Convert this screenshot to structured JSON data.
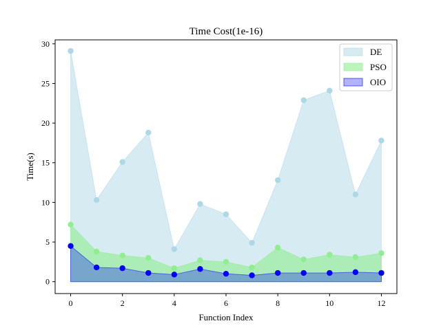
{
  "chart_data": {
    "type": "area",
    "title": "Time Cost(1e-16)",
    "xlabel": "Function Index",
    "ylabel": "Time(s)",
    "xlim": [
      -0.6,
      12.6
    ],
    "ylim": [
      -1.5,
      30.5
    ],
    "xticks": [
      0,
      2,
      4,
      6,
      8,
      10,
      12
    ],
    "yticks": [
      0,
      5,
      10,
      15,
      20,
      25,
      30
    ],
    "legend_position": "top-right",
    "x": [
      0,
      1,
      2,
      3,
      4,
      5,
      6,
      7,
      8,
      9,
      10,
      11,
      12
    ],
    "series": [
      {
        "name": "DE",
        "values": [
          29.1,
          10.3,
          15.1,
          18.8,
          4.1,
          9.8,
          8.5,
          4.9,
          12.8,
          22.9,
          24.1,
          11.0,
          17.8
        ],
        "fill_color": "#add8e6",
        "marker_color": "#add8e6"
      },
      {
        "name": "PSO",
        "values": [
          7.2,
          3.8,
          3.3,
          3.0,
          1.7,
          2.7,
          2.5,
          1.8,
          4.3,
          2.8,
          3.4,
          3.1,
          3.6
        ],
        "fill_color": "#90ee90",
        "marker_color": "#90ee90"
      },
      {
        "name": "OIO",
        "values": [
          4.5,
          1.8,
          1.7,
          1.1,
          0.9,
          1.6,
          1.0,
          0.8,
          1.1,
          1.1,
          1.1,
          1.2,
          1.1
        ],
        "fill_color": "#0000ff",
        "marker_color": "#0000ff"
      }
    ]
  }
}
